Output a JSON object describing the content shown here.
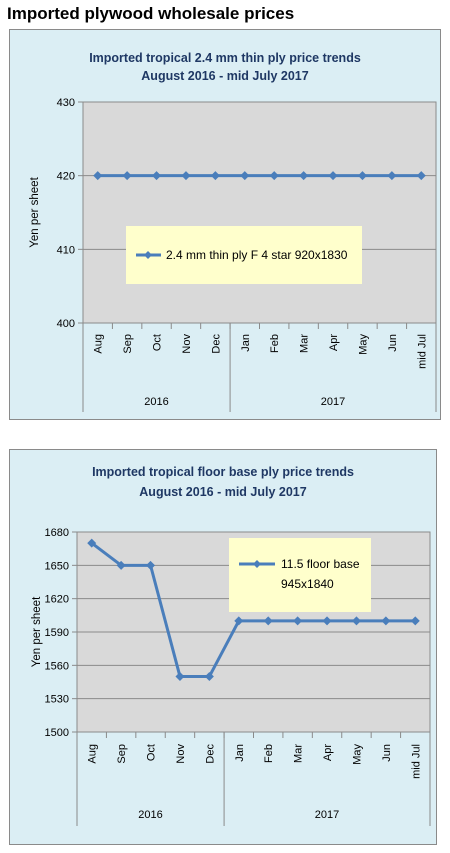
{
  "page": {
    "title": "Imported plywood wholesale prices"
  },
  "colors": {
    "panel_bg": "#dbeef4",
    "plot_bg": "#d9d9d9",
    "series": "#4a7ebb",
    "legend_bg": "#ffffcc",
    "title_text": "#1f3864"
  },
  "chart_data": [
    {
      "type": "line",
      "title": "Imported tropical 2.4 mm thin ply price trends",
      "subtitle": "August 2016 - mid July 2017",
      "ylabel": "Yen per sheet",
      "xlabel": "",
      "ylim": [
        400,
        430
      ],
      "yticks": [
        400,
        410,
        420,
        430
      ],
      "categories": [
        "Aug",
        "Sep",
        "Oct",
        "Nov",
        "Dec",
        "Jan",
        "Feb",
        "Mar",
        "Apr",
        "May",
        "Jun",
        "mid Jul"
      ],
      "year_groups": [
        {
          "label": "2016",
          "count": 5
        },
        {
          "label": "2017",
          "count": 7
        }
      ],
      "series": [
        {
          "name": "2.4 mm thin ply F 4 star 920x1830",
          "values": [
            420,
            420,
            420,
            420,
            420,
            420,
            420,
            420,
            420,
            420,
            420,
            420
          ]
        }
      ],
      "legend": "center",
      "grid": "horizontal",
      "marker": "diamond"
    },
    {
      "type": "line",
      "title": "Imported tropical floor base ply price trends",
      "subtitle": "August 2016 - mid July 2017",
      "ylabel": "Yen per sheet",
      "xlabel": "",
      "ylim": [
        1500,
        1680
      ],
      "yticks": [
        1500,
        1530,
        1560,
        1590,
        1620,
        1650,
        1680
      ],
      "categories": [
        "Aug",
        "Sep",
        "Oct",
        "Nov",
        "Dec",
        "Jan",
        "Feb",
        "Mar",
        "Apr",
        "May",
        "Jun",
        "mid Jul"
      ],
      "year_groups": [
        {
          "label": "2016",
          "count": 5
        },
        {
          "label": "2017",
          "count": 7
        }
      ],
      "series": [
        {
          "name": "11.5 floor base 945x1840",
          "values": [
            1670,
            1650,
            1650,
            1550,
            1550,
            1600,
            1600,
            1600,
            1600,
            1600,
            1600,
            1600
          ]
        }
      ],
      "legend": "top-right",
      "grid": "horizontal",
      "marker": "diamond"
    }
  ]
}
